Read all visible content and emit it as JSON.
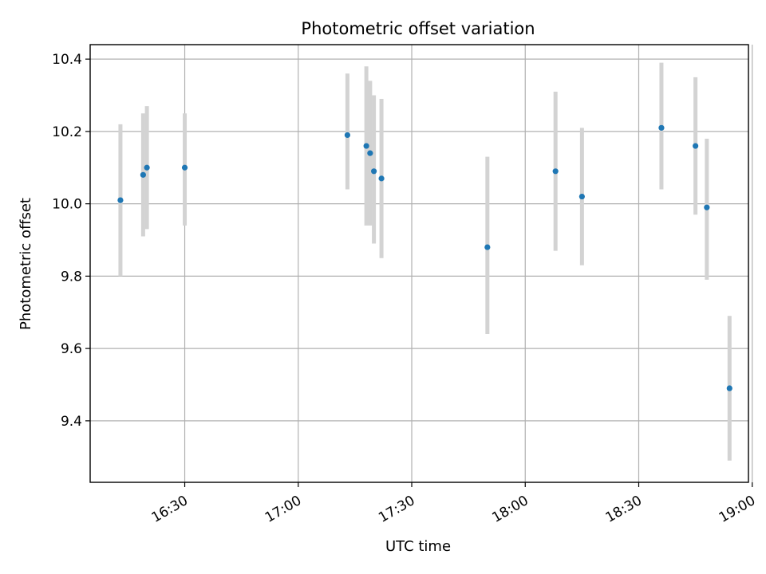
{
  "chart_data": {
    "type": "scatter",
    "title": "Photometric offset variation",
    "xlabel": "UTC time",
    "ylabel": "Photometric offset",
    "x_axis_type": "time",
    "xlim": [
      "16:05",
      "18:59"
    ],
    "ylim": [
      9.23,
      10.44
    ],
    "grid": true,
    "colors": {
      "marker": "#1f77b4",
      "errorbar": "#d3d3d3",
      "grid": "#b0b0b0",
      "axes": "#000000"
    },
    "x_ticks": [
      "16:30",
      "17:00",
      "17:30",
      "18:00",
      "18:30",
      "19:00"
    ],
    "y_ticks": [
      9.4,
      9.6,
      9.8,
      10.0,
      10.2,
      10.4
    ],
    "y_tick_labels": [
      "9.4",
      "9.6",
      "9.8",
      "10.0",
      "10.2",
      "10.4"
    ],
    "series": [
      {
        "points": [
          {
            "x": "16:13",
            "y": 10.01,
            "ylow": 9.8,
            "yhigh": 10.22
          },
          {
            "x": "16:19",
            "y": 10.08,
            "ylow": 9.91,
            "yhigh": 10.25
          },
          {
            "x": "16:20",
            "y": 10.1,
            "ylow": 9.93,
            "yhigh": 10.27
          },
          {
            "x": "16:30",
            "y": 10.1,
            "ylow": 9.94,
            "yhigh": 10.25
          },
          {
            "x": "17:13",
            "y": 10.19,
            "ylow": 10.04,
            "yhigh": 10.36
          },
          {
            "x": "17:18",
            "y": 10.16,
            "ylow": 9.94,
            "yhigh": 10.38
          },
          {
            "x": "17:19",
            "y": 10.14,
            "ylow": 9.94,
            "yhigh": 10.34
          },
          {
            "x": "17:20",
            "y": 10.09,
            "ylow": 9.89,
            "yhigh": 10.3
          },
          {
            "x": "17:22",
            "y": 10.07,
            "ylow": 9.85,
            "yhigh": 10.29
          },
          {
            "x": "17:50",
            "y": 9.88,
            "ylow": 9.64,
            "yhigh": 10.13
          },
          {
            "x": "18:08",
            "y": 10.09,
            "ylow": 9.87,
            "yhigh": 10.31
          },
          {
            "x": "18:15",
            "y": 10.02,
            "ylow": 9.83,
            "yhigh": 10.21
          },
          {
            "x": "18:36",
            "y": 10.21,
            "ylow": 10.04,
            "yhigh": 10.39
          },
          {
            "x": "18:45",
            "y": 10.16,
            "ylow": 9.97,
            "yhigh": 10.35
          },
          {
            "x": "18:48",
            "y": 9.99,
            "ylow": 9.79,
            "yhigh": 10.18
          },
          {
            "x": "18:54",
            "y": 9.49,
            "ylow": 9.29,
            "yhigh": 9.69
          }
        ]
      }
    ]
  }
}
